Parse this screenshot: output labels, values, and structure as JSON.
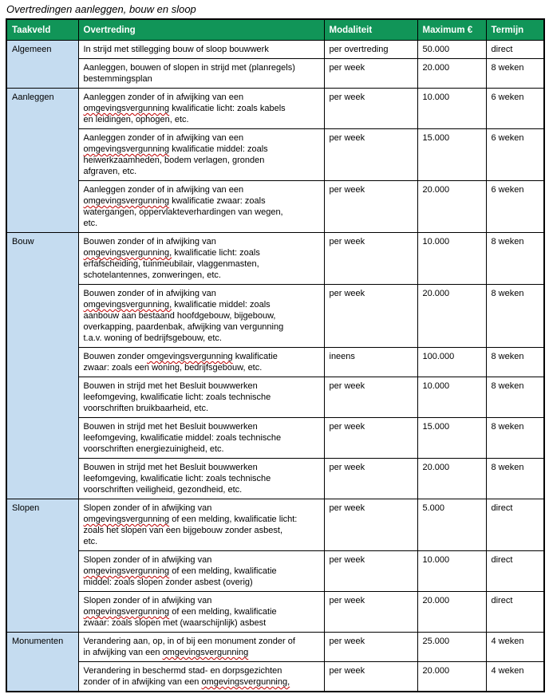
{
  "title": "Overtredingen aanleggen, bouw en sloop",
  "colors": {
    "header_bg": "#119558",
    "header_text": "#FFFFFF",
    "taakveld_bg": "#C5DCF0",
    "border": "#000000",
    "spellcheck_underline": "#C00000"
  },
  "table": {
    "headers": [
      "Taakveld",
      "Overtreding",
      "Modaliteit",
      "Maximum €",
      "Termijn"
    ],
    "groups": [
      {
        "taakveld": "Algemeen",
        "rows": [
          {
            "overtreding": [
              {
                "text": "In strijd met stillegging bouw of sloop bouwwerk"
              }
            ],
            "modaliteit": "per overtreding",
            "maximum": "50.000",
            "termijn": "direct"
          },
          {
            "overtreding": [
              {
                "text": "Aanleggen, bouwen of slopen in strijd met (planregels)\nbestemmingsplan"
              }
            ],
            "modaliteit": "per week",
            "maximum": "20.000",
            "termijn": "8 weken"
          }
        ]
      },
      {
        "taakveld": "Aanleggen",
        "rows": [
          {
            "overtreding": [
              {
                "text": "Aanleggen zonder of in afwijking van een\n"
              },
              {
                "text": "omgevingsvergunning",
                "misspelled": true
              },
              {
                "text": " kwalificatie licht: zoals kabels\nen leidingen, ophogen, etc."
              }
            ],
            "modaliteit": "per week",
            "maximum": "10.000",
            "termijn": "6 weken"
          },
          {
            "overtreding": [
              {
                "text": "Aanleggen zonder of in afwijking van een\n"
              },
              {
                "text": "omgevingsvergunning",
                "misspelled": true
              },
              {
                "text": " kwalificatie middel: zoals\nheiwerkzaamheden, bodem verlagen, gronden\nafgraven, etc."
              }
            ],
            "modaliteit": "per week",
            "maximum": "15.000",
            "termijn": "6 weken"
          },
          {
            "overtreding": [
              {
                "text": "Aanleggen zonder of in afwijking van een\n"
              },
              {
                "text": "omgevingsvergunning",
                "misspelled": true
              },
              {
                "text": " kwalificatie zwaar: zoals\nwatergangen, oppervlakteverhardingen van wegen,\netc."
              }
            ],
            "modaliteit": "per week",
            "maximum": "20.000",
            "termijn": "6 weken"
          }
        ]
      },
      {
        "taakveld": "Bouw",
        "rows": [
          {
            "overtreding": [
              {
                "text": "Bouwen zonder of in afwijking van\n"
              },
              {
                "text": "omgevingsvergunning,",
                "misspelled": true
              },
              {
                "text": " kwalificatie licht: zoals\nerfafscheiding, tuinmeubilair, vlaggenmasten,\nschotelantennes, zonweringen, etc."
              }
            ],
            "modaliteit": "per week",
            "maximum": "10.000",
            "termijn": "8 weken"
          },
          {
            "overtreding": [
              {
                "text": "Bouwen zonder of in afwijking van\n"
              },
              {
                "text": "omgevingsvergunning,",
                "misspelled": true
              },
              {
                "text": " kwalificatie middel: zoals\naanbouw aan bestaand hoofdgebouw, bijgebouw,\noverkapping, paardenbak, afwijking van vergunning\nt.a.v. woning of bedrijfsgebouw, etc."
              }
            ],
            "modaliteit": "per week",
            "maximum": "20.000",
            "termijn": "8 weken"
          },
          {
            "overtreding": [
              {
                "text": "Bouwen zonder "
              },
              {
                "text": "omgevingsvergunning",
                "misspelled": true
              },
              {
                "text": " kwalificatie\nzwaar: zoals een woning, bedrijfsgebouw, etc."
              }
            ],
            "modaliteit": "ineens",
            "maximum": "100.000",
            "termijn": "8 weken"
          },
          {
            "overtreding": [
              {
                "text": "Bouwen in strijd met het Besluit bouwwerken\nleefomgeving, kwalificatie licht: zoals technische\nvoorschriften bruikbaarheid, etc."
              }
            ],
            "modaliteit": "per week",
            "maximum": "10.000",
            "termijn": "8 weken"
          },
          {
            "overtreding": [
              {
                "text": "Bouwen in strijd met het Besluit bouwwerken\nleefomgeving, kwalificatie middel: zoals technische\nvoorschriften energiezuinigheid, etc."
              }
            ],
            "modaliteit": "per week",
            "maximum": "15.000",
            "termijn": "8 weken"
          },
          {
            "overtreding": [
              {
                "text": "Bouwen in strijd met het Besluit bouwwerken\nleefomgeving, kwalificatie licht: zoals technische\nvoorschriften veiligheid, gezondheid, etc."
              }
            ],
            "modaliteit": "per week",
            "maximum": "20.000",
            "termijn": "8 weken"
          }
        ]
      },
      {
        "taakveld": "Slopen",
        "rows": [
          {
            "overtreding": [
              {
                "text": "Slopen zonder of in afwijking van\n"
              },
              {
                "text": "omgevingsvergunning",
                "misspelled": true
              },
              {
                "text": " of een melding, kwalificatie licht:\nzoals het slopen van een bijgebouw zonder asbest,\netc."
              }
            ],
            "modaliteit": "per week",
            "maximum": "5.000",
            "termijn": "direct"
          },
          {
            "overtreding": [
              {
                "text": "Slopen zonder of in afwijking van\n"
              },
              {
                "text": "omgevingsvergunning",
                "misspelled": true
              },
              {
                "text": " of een melding, kwalificatie\nmiddel: zoals slopen zonder asbest (overig)"
              }
            ],
            "modaliteit": "per week",
            "maximum": "10.000",
            "termijn": "direct"
          },
          {
            "overtreding": [
              {
                "text": "Slopen zonder of in afwijking van\n"
              },
              {
                "text": "omgevingsvergunning",
                "misspelled": true
              },
              {
                "text": " of een melding, kwalificatie\nzwaar: zoals slopen met (waarschijnlijk) asbest"
              }
            ],
            "modaliteit": "per week",
            "maximum": "20.000",
            "termijn": "direct"
          }
        ]
      },
      {
        "taakveld": "Monumenten",
        "rows": [
          {
            "overtreding": [
              {
                "text": "Verandering aan, op, in of bij een monument zonder of\nin afwijking van een "
              },
              {
                "text": "omgevingsvergunning",
                "misspelled": true
              }
            ],
            "modaliteit": "per week",
            "maximum": "25.000",
            "termijn": "4 weken"
          },
          {
            "overtreding": [
              {
                "text": "Verandering in beschermd stad- en dorpsgezichten\nzonder of in afwijking van een "
              },
              {
                "text": "omgevingsvergunning,",
                "misspelled": true
              }
            ],
            "modaliteit": "per week",
            "maximum": "20.000",
            "termijn": "4 weken"
          }
        ]
      }
    ]
  }
}
